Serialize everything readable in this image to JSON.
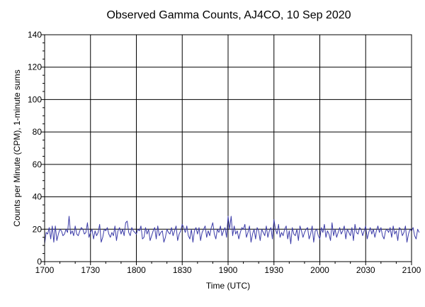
{
  "chart_data": {
    "type": "line",
    "title": "Observed Gamma Counts, AJ4CO, 10 Sep 2020",
    "xlabel": "Time (UTC)",
    "ylabel": "Counts per Minute (CPM), 1-minute sums",
    "x_start": "1700",
    "x_end": "2100",
    "x_step_minutes": 1,
    "xlim": [
      0,
      240
    ],
    "ylim": [
      0,
      140
    ],
    "grid": true,
    "x_ticks": [
      {
        "minute": 0,
        "label": "1700"
      },
      {
        "minute": 30,
        "label": "1730"
      },
      {
        "minute": 60,
        "label": "1800"
      },
      {
        "minute": 90,
        "label": "1830"
      },
      {
        "minute": 120,
        "label": "1900"
      },
      {
        "minute": 150,
        "label": "1930"
      },
      {
        "minute": 180,
        "label": "2000"
      },
      {
        "minute": 210,
        "label": "2030"
      },
      {
        "minute": 240,
        "label": "2100"
      }
    ],
    "y_ticks": [
      {
        "value": 0,
        "label": "0"
      },
      {
        "value": 20,
        "label": "20"
      },
      {
        "value": 40,
        "label": "40"
      },
      {
        "value": 60,
        "label": "60"
      },
      {
        "value": 80,
        "label": "80"
      },
      {
        "value": 100,
        "label": "100"
      },
      {
        "value": 120,
        "label": "120"
      },
      {
        "value": 140,
        "label": "140"
      }
    ],
    "series": [
      {
        "color": "#3b3ba8",
        "values": [
          11,
          18,
          17,
          21,
          14,
          22,
          12,
          22,
          13,
          17,
          20,
          19,
          16,
          17,
          20,
          18,
          28,
          17,
          19,
          16,
          22,
          17,
          16,
          19,
          21,
          20,
          17,
          18,
          24,
          15,
          18,
          20,
          14,
          19,
          16,
          18,
          23,
          12,
          15,
          20,
          19,
          21,
          17,
          15,
          18,
          16,
          22,
          13,
          19,
          21,
          17,
          20,
          16,
          24,
          25,
          18,
          16,
          21,
          19,
          18,
          17,
          20,
          19,
          22,
          14,
          15,
          21,
          17,
          20,
          13,
          16,
          19,
          21,
          14,
          22,
          16,
          18,
          19,
          12,
          15,
          20,
          18,
          17,
          21,
          16,
          19,
          22,
          13,
          17,
          19,
          23,
          21,
          18,
          22,
          16,
          14,
          20,
          12,
          19,
          21,
          17,
          21,
          13,
          18,
          20,
          22,
          15,
          19,
          16,
          21,
          24,
          17,
          14,
          20,
          18,
          22,
          16,
          19,
          21,
          15,
          28,
          20,
          28,
          16,
          22,
          17,
          19,
          14,
          18,
          21,
          20,
          23,
          15,
          18,
          22,
          12,
          17,
          20,
          14,
          21,
          19,
          13,
          20,
          18,
          16,
          22,
          15,
          19,
          21,
          14,
          26,
          20,
          17,
          23,
          15,
          18,
          16,
          20,
          22,
          14,
          19,
          11,
          21,
          17,
          16,
          20,
          13,
          22,
          19,
          15,
          18,
          20,
          21,
          14,
          17,
          22,
          12,
          19,
          20,
          16,
          14,
          21,
          18,
          23,
          15,
          19,
          17,
          13,
          24,
          16,
          20,
          15,
          18,
          21,
          17,
          19,
          22,
          14,
          20,
          18,
          16,
          21,
          13,
          23,
          18,
          17,
          21,
          20,
          16,
          19,
          22,
          14,
          18,
          21,
          17,
          20,
          15,
          19,
          22,
          18,
          21,
          16,
          14,
          19,
          20,
          18,
          21,
          15,
          22,
          17,
          19,
          13,
          21,
          20,
          16,
          18,
          22,
          12,
          17,
          20,
          19,
          21,
          16,
          14,
          20,
          18
        ]
      }
    ]
  }
}
